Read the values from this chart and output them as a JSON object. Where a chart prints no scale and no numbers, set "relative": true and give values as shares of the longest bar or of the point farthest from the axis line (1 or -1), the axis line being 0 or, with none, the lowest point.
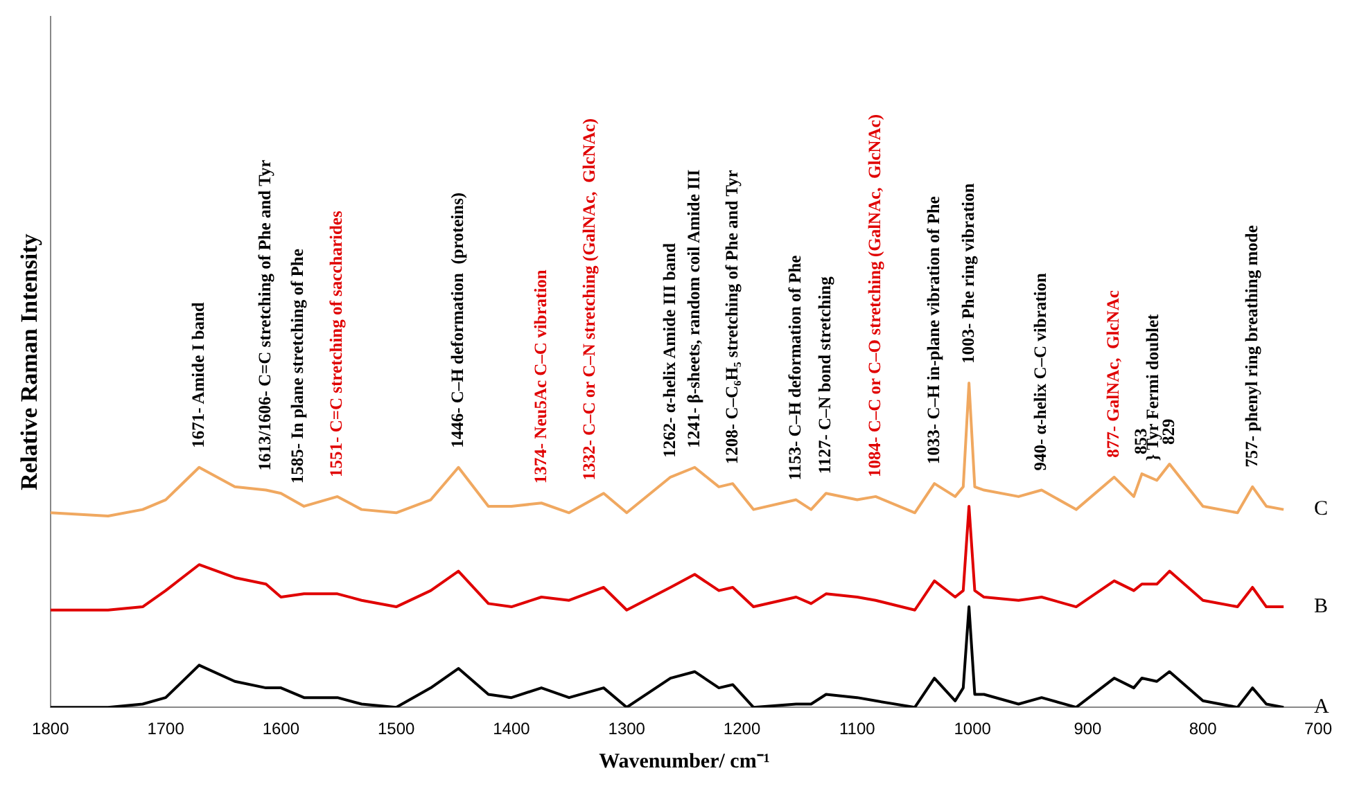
{
  "chart_data": {
    "type": "line",
    "relative": true,
    "xlabel": "Wavenumber/ cm⁻¹",
    "ylabel": "Relative Raman Intensity",
    "x": [
      1800,
      1750,
      1720,
      1700,
      1671,
      1640,
      1613,
      1600,
      1580,
      1551,
      1530,
      1500,
      1470,
      1446,
      1420,
      1400,
      1374,
      1350,
      1320,
      1300,
      1262,
      1241,
      1220,
      1208,
      1190,
      1153,
      1140,
      1127,
      1100,
      1084,
      1050,
      1033,
      1015,
      1008,
      1003,
      998,
      990,
      960,
      940,
      910,
      877,
      860,
      853,
      840,
      829,
      800,
      770,
      757,
      745,
      730
    ],
    "xlim": [
      1800,
      700
    ],
    "xticks": [
      1800,
      1700,
      1600,
      1500,
      1400,
      1300,
      1200,
      1100,
      1000,
      900,
      800,
      700
    ],
    "grid": false,
    "legend": false,
    "marker": "none",
    "line_style": "solid",
    "series": [
      {
        "name": "C",
        "color": "#f0a860",
        "values": [
          0.6,
          0.59,
          0.61,
          0.64,
          0.74,
          0.68,
          0.67,
          0.66,
          0.62,
          0.65,
          0.61,
          0.6,
          0.64,
          0.74,
          0.62,
          0.62,
          0.63,
          0.6,
          0.66,
          0.6,
          0.71,
          0.74,
          0.68,
          0.69,
          0.61,
          0.64,
          0.61,
          0.66,
          0.64,
          0.65,
          0.6,
          0.69,
          0.65,
          0.68,
          1,
          0.68,
          0.67,
          0.65,
          0.67,
          0.61,
          0.71,
          0.65,
          0.72,
          0.7,
          0.75,
          0.62,
          0.6,
          0.68,
          0.62,
          0.61
        ]
      },
      {
        "name": "B",
        "color": "#e00000",
        "values": [
          0.3,
          0.3,
          0.31,
          0.36,
          0.44,
          0.4,
          0.38,
          0.34,
          0.35,
          0.35,
          0.33,
          0.31,
          0.36,
          0.42,
          0.32,
          0.31,
          0.34,
          0.33,
          0.37,
          0.3,
          0.37,
          0.41,
          0.36,
          0.37,
          0.31,
          0.34,
          0.32,
          0.35,
          0.34,
          0.33,
          0.3,
          0.39,
          0.34,
          0.36,
          0.62,
          0.36,
          0.34,
          0.33,
          0.34,
          0.31,
          0.39,
          0.36,
          0.38,
          0.38,
          0.42,
          0.33,
          0.31,
          0.37,
          0.31,
          0.31
        ]
      },
      {
        "name": "A",
        "color": "#000000",
        "values": [
          0,
          0,
          0.01,
          0.03,
          0.13,
          0.08,
          0.06,
          0.06,
          0.03,
          0.03,
          0.01,
          0,
          0.06,
          0.12,
          0.04,
          0.03,
          0.06,
          0.03,
          0.06,
          0,
          0.09,
          0.11,
          0.06,
          0.07,
          0,
          0.01,
          0.01,
          0.04,
          0.03,
          0.02,
          0,
          0.09,
          0.02,
          0.06,
          0.31,
          0.04,
          0.04,
          0.01,
          0.03,
          0,
          0.09,
          0.06,
          0.09,
          0.08,
          0.11,
          0.02,
          0,
          0.06,
          0.01,
          0
        ]
      }
    ],
    "annotations": [
      {
        "text": "1671- Amide I band",
        "x": 1671,
        "y": 0.74
      },
      {
        "text": "1613/1606- C=C stretching of Phe and Tyr",
        "x": 1613,
        "y": 0.67
      },
      {
        "text": "1585- In plane stretching of Phe",
        "x": 1585,
        "y": 0.63
      },
      {
        "text": "1551- C=C stretching of saccharides",
        "x": 1551,
        "y": 0.65
      },
      {
        "text": "1446- C–H deformation  (proteins)",
        "x": 1446,
        "y": 0.74
      },
      {
        "text": "1374- Neu5Ac C–C vibration",
        "x": 1374,
        "y": 0.63
      },
      {
        "text": "1332- C–C or C–N stretching (GalNAc,  GlcNAc)",
        "x": 1332,
        "y": 0.64
      },
      {
        "text": "1262- α-helix Amide III band",
        "x": 1262,
        "y": 0.71
      },
      {
        "text": "1241- β-sheets, random coil Amide III",
        "x": 1241,
        "y": 0.74
      },
      {
        "text": "1208- C–C₆H₅ stretching of Phe and Tyr",
        "x": 1208,
        "y": 0.69
      },
      {
        "text": "1153- C–H deformation of Phe",
        "x": 1153,
        "y": 0.64
      },
      {
        "text": "1127- C–N bond stretching",
        "x": 1127,
        "y": 0.66
      },
      {
        "text": "1084- C–C or C–O stretching (GalNAc,  GlcNAc)",
        "x": 1084,
        "y": 0.65
      },
      {
        "text": "1033- C–H in-plane vibration of Phe",
        "x": 1033,
        "y": 0.69
      },
      {
        "text": "1003- Phe ring vibration",
        "x": 1003,
        "y": 1
      },
      {
        "text": "940- α-helix C–C vibration",
        "x": 940,
        "y": 0.67
      },
      {
        "text": "877- GalNAc,  GlcNAc",
        "x": 877,
        "y": 0.71
      },
      {
        "text": "853",
        "x": 853,
        "y": 0.72
      },
      {
        "text": "} Tyr Fermi doublet",
        "x": 843,
        "y": 0.7
      },
      {
        "text": "829",
        "x": 829,
        "y": 0.75
      },
      {
        "text": "757- phenyl ring breathing mode",
        "x": 757,
        "y": 0.68
      }
    ]
  }
}
